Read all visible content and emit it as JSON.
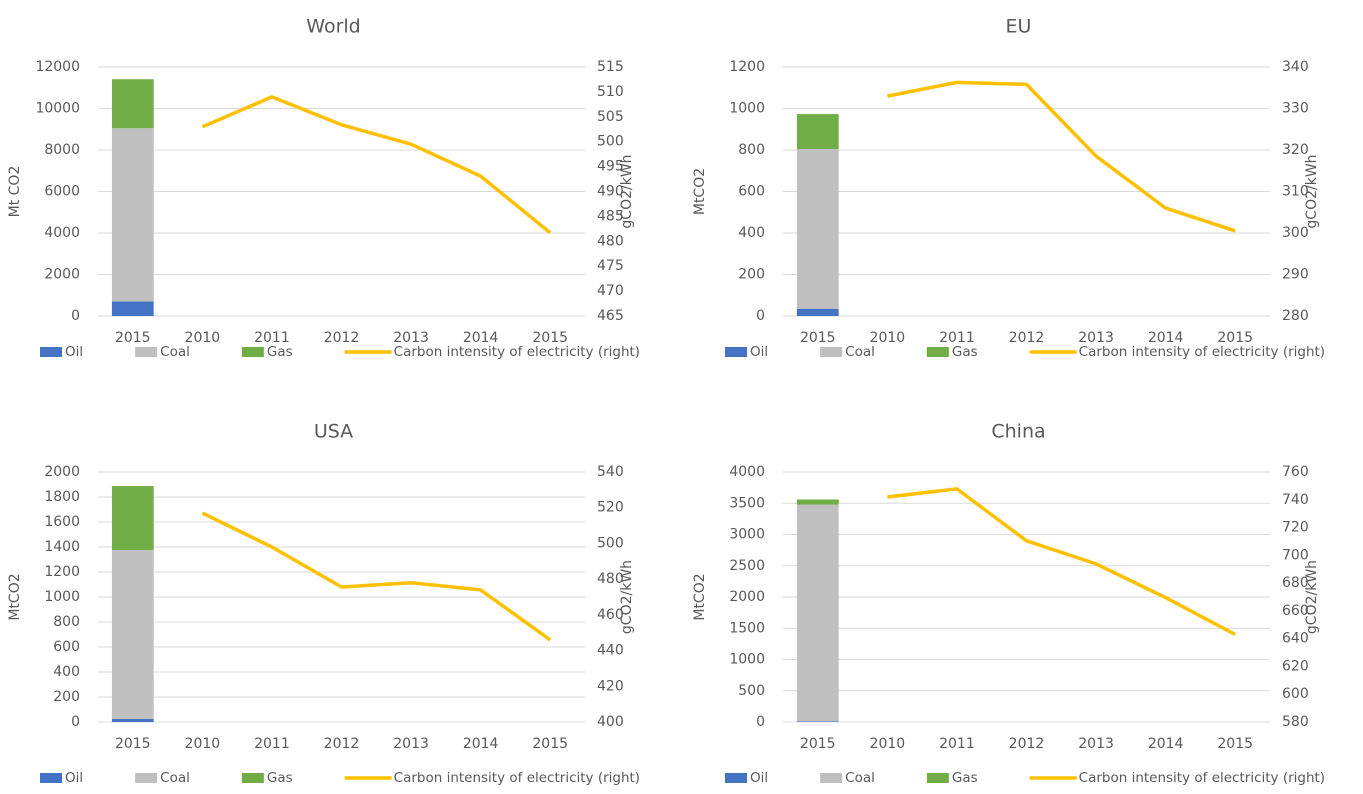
{
  "chart_data": [
    {
      "type": "bar",
      "title": "World",
      "categories": [
        "2015",
        "2010",
        "2011",
        "2012",
        "2013",
        "2014",
        "2015"
      ],
      "ylabel": "Mt CO2",
      "y2label": "gCO2/kWh",
      "stacked": true,
      "grid": true,
      "legend": "bottom",
      "ylim": [
        0,
        12000
      ],
      "yticks": [
        0,
        2000,
        4000,
        6000,
        8000,
        10000,
        12000
      ],
      "y2lim": [
        465,
        515
      ],
      "y2ticks": [
        465,
        470,
        475,
        480,
        485,
        490,
        495,
        500,
        505,
        510,
        515
      ],
      "series": [
        {
          "name": "Oil",
          "color": "#4472c4",
          "values": [
            700,
            null,
            null,
            null,
            null,
            null,
            null
          ]
        },
        {
          "name": "Coal",
          "color": "#bfbfbf",
          "values": [
            8350,
            null,
            null,
            null,
            null,
            null,
            null
          ]
        },
        {
          "name": "Gas",
          "color": "#70ad47",
          "values": [
            2360,
            null,
            null,
            null,
            null,
            null,
            null
          ]
        },
        {
          "name": "Carbon intensity of electricity (right)",
          "color": "#ffc000",
          "type": "line",
          "axis": "y2",
          "values": [
            null,
            503,
            509,
            503.4,
            499.5,
            493.1,
            481.7
          ]
        }
      ]
    },
    {
      "type": "bar",
      "title": "EU",
      "categories": [
        "2015",
        "2010",
        "2011",
        "2012",
        "2013",
        "2014",
        "2015"
      ],
      "ylabel": "MtCO2",
      "y2label": "gCO2/kWh",
      "stacked": true,
      "grid": true,
      "legend": "bottom",
      "ylim": [
        0,
        1200
      ],
      "yticks": [
        0,
        200,
        400,
        600,
        800,
        1000,
        1200
      ],
      "y2lim": [
        280,
        340
      ],
      "y2ticks": [
        280,
        290,
        300,
        310,
        320,
        330,
        340
      ],
      "series": [
        {
          "name": "Oil",
          "color": "#4472c4",
          "values": [
            35,
            null,
            null,
            null,
            null,
            null,
            null
          ]
        },
        {
          "name": "Coal",
          "color": "#bfbfbf",
          "values": [
            770,
            null,
            null,
            null,
            null,
            null,
            null
          ]
        },
        {
          "name": "Gas",
          "color": "#70ad47",
          "values": [
            168,
            null,
            null,
            null,
            null,
            null,
            null
          ]
        },
        {
          "name": "Carbon intensity of electricity (right)",
          "color": "#ffc000",
          "type": "line",
          "axis": "y2",
          "values": [
            null,
            333,
            336.3,
            335.8,
            318.5,
            306,
            300.5
          ]
        }
      ]
    },
    {
      "type": "bar",
      "title": "USA",
      "categories": [
        "2015",
        "2010",
        "2011",
        "2012",
        "2013",
        "2014",
        "2015"
      ],
      "ylabel": "MtCO2",
      "y2label": "gCO2/kWh",
      "stacked": true,
      "grid": true,
      "legend": "bottom",
      "ylim": [
        0,
        2000
      ],
      "yticks": [
        0,
        200,
        400,
        600,
        800,
        1000,
        1200,
        1400,
        1600,
        1800,
        2000
      ],
      "y2lim": [
        400,
        540
      ],
      "y2ticks": [
        400,
        420,
        440,
        460,
        480,
        500,
        520,
        540
      ],
      "series": [
        {
          "name": "Oil",
          "color": "#4472c4",
          "values": [
            24,
            null,
            null,
            null,
            null,
            null,
            null
          ]
        },
        {
          "name": "Coal",
          "color": "#bfbfbf",
          "values": [
            1352,
            null,
            null,
            null,
            null,
            null,
            null
          ]
        },
        {
          "name": "Gas",
          "color": "#70ad47",
          "values": [
            512,
            null,
            null,
            null,
            null,
            null,
            null
          ]
        },
        {
          "name": "Carbon intensity of electricity (right)",
          "color": "#ffc000",
          "type": "line",
          "axis": "y2",
          "values": [
            null,
            517,
            498,
            475.6,
            478,
            474,
            446
          ]
        }
      ]
    },
    {
      "type": "bar",
      "title": "China",
      "categories": [
        "2015",
        "2010",
        "2011",
        "2012",
        "2013",
        "2014",
        "2015"
      ],
      "ylabel": "MtCO2",
      "y2label": "gCO2/kWh",
      "stacked": true,
      "grid": true,
      "legend": "bottom",
      "ylim": [
        0,
        4000
      ],
      "yticks": [
        0,
        500,
        1000,
        1500,
        2000,
        2500,
        3000,
        3500,
        4000
      ],
      "y2lim": [
        580,
        760
      ],
      "y2ticks": [
        580,
        600,
        620,
        640,
        660,
        680,
        700,
        720,
        740,
        760
      ],
      "series": [
        {
          "name": "Oil",
          "color": "#4472c4",
          "values": [
            10,
            null,
            null,
            null,
            null,
            null,
            null
          ]
        },
        {
          "name": "Coal",
          "color": "#bfbfbf",
          "values": [
            3470,
            null,
            null,
            null,
            null,
            null,
            null
          ]
        },
        {
          "name": "Gas",
          "color": "#70ad47",
          "values": [
            80,
            null,
            null,
            null,
            null,
            null,
            null
          ]
        },
        {
          "name": "Carbon intensity of electricity (right)",
          "color": "#ffc000",
          "type": "line",
          "axis": "y2",
          "values": [
            null,
            742,
            747.8,
            710.5,
            693.8,
            669.6,
            643
          ]
        }
      ]
    }
  ]
}
